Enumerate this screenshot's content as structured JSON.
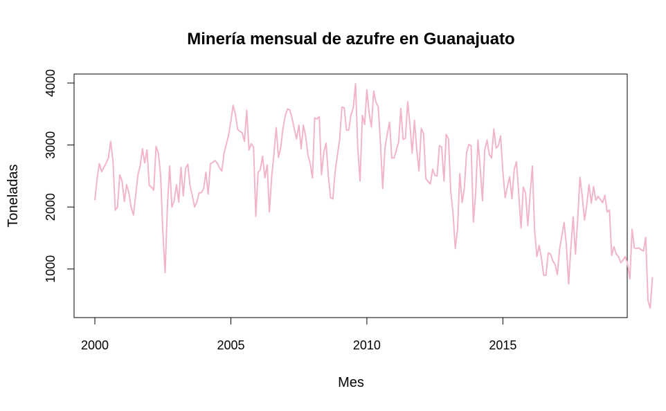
{
  "chart_data": {
    "type": "line",
    "title": "Minería mensual de azufre en Guanajuato",
    "xlabel": "Mes",
    "ylabel": "Toneladas",
    "xlim": [
      2000,
      2018.833
    ],
    "ylim": [
      350,
      4000
    ],
    "x_ticks": [
      2000,
      2005,
      2010,
      2015
    ],
    "y_ticks": [
      1000,
      2000,
      3000,
      4000
    ],
    "grid": false,
    "legend": "none",
    "line_color": "#f1b4c9",
    "x_start": 2000,
    "x_step": 0.0833333,
    "values": [
      2110,
      2460,
      2700,
      2570,
      2640,
      2710,
      2790,
      3060,
      2740,
      1950,
      2000,
      2520,
      2420,
      2090,
      2360,
      2230,
      2000,
      1870,
      2180,
      2520,
      2670,
      2940,
      2710,
      2920,
      2350,
      2320,
      2270,
      2980,
      2870,
      2510,
      1600,
      940,
      2010,
      2660,
      2000,
      2100,
      2360,
      2080,
      2640,
      2180,
      2620,
      2690,
      2350,
      2180,
      2000,
      2080,
      2230,
      2230,
      2300,
      2560,
      2210,
      2700,
      2720,
      2750,
      2710,
      2630,
      2580,
      2870,
      3010,
      3160,
      3390,
      3640,
      3500,
      3250,
      3220,
      3200,
      3060,
      3560,
      2920,
      3020,
      2970,
      1850,
      2560,
      2600,
      2820,
      2470,
      2680,
      1920,
      2480,
      2860,
      3280,
      2800,
      2960,
      3270,
      3470,
      3580,
      3570,
      3430,
      3260,
      3100,
      3320,
      2940,
      3320,
      3140,
      2840,
      2700,
      2470,
      3440,
      3420,
      3460,
      2520,
      2880,
      3030,
      2500,
      2150,
      2130,
      2570,
      2840,
      3090,
      3610,
      3600,
      3240,
      3240,
      3490,
      3600,
      3990,
      2950,
      2420,
      3480,
      3330,
      3890,
      3510,
      3290,
      3870,
      3690,
      3620,
      3020,
      2300,
      2960,
      3180,
      3370,
      2790,
      2790,
      2920,
      3050,
      3590,
      3090,
      3110,
      3700,
      3330,
      2870,
      3400,
      2920,
      2580,
      3270,
      3180,
      2460,
      2410,
      2370,
      2610,
      2510,
      2500,
      2990,
      2970,
      2420,
      3170,
      3100,
      2250,
      1900,
      1330,
      1640,
      2540,
      2070,
      2300,
      2880,
      3010,
      2990,
      1760,
      2230,
      3080,
      2640,
      2100,
      2920,
      3080,
      2850,
      2790,
      3260,
      2950,
      2990,
      3150,
      2560,
      2150,
      2330,
      2490,
      2130,
      2610,
      2730,
      2210,
      1660,
      2320,
      2230,
      1700,
      2200,
      2660,
      1630,
      1200,
      1380,
      1170,
      900,
      900,
      1260,
      1240,
      1130,
      1080,
      910,
      1320,
      1530,
      1750,
      1390,
      760,
      1350,
      1840,
      1240,
      1790,
      2480,
      2180,
      1790,
      2030,
      2360,
      2060,
      2330,
      2110,
      2170,
      2120,
      2070,
      2190,
      1920,
      1950,
      1220,
      1360,
      1240,
      1200,
      1100,
      1140,
      1200,
      1080,
      840,
      1640,
      1340,
      1330,
      1340,
      1310,
      1290,
      1510,
      490,
      370,
      870
    ]
  }
}
